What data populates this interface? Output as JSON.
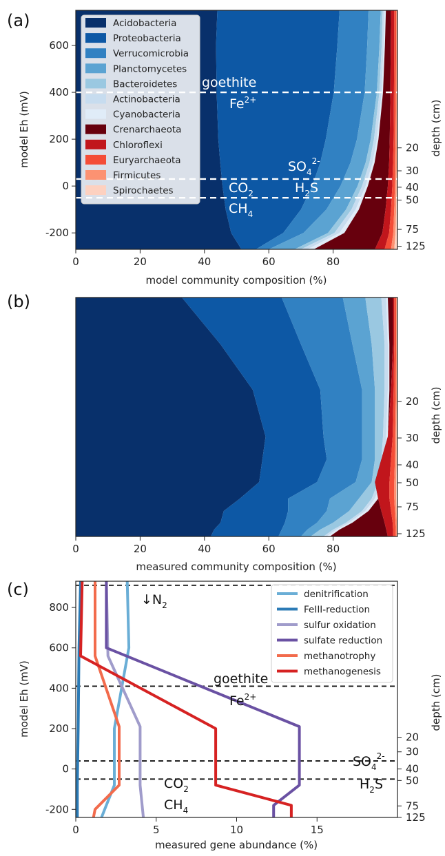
{
  "panels": {
    "a": {
      "letter": "(a)",
      "xlabel": "model community composition (%)",
      "ylabel": "model Eh (mV)",
      "right_label": "depth (cm)",
      "x_ticks": [
        0,
        20,
        40,
        60,
        80
      ],
      "y_ticks": [
        -200,
        0,
        200,
        400,
        600
      ],
      "depth_ticks": [
        {
          "label": "20",
          "eh": 163
        },
        {
          "label": "30",
          "eh": 65
        },
        {
          "label": "40",
          "eh": -5
        },
        {
          "label": "50",
          "eh": -60
        },
        {
          "label": "75",
          "eh": -185
        },
        {
          "label": "125",
          "eh": -257
        }
      ],
      "xlim": [
        0,
        100
      ],
      "ylim": [
        -270,
        750
      ],
      "dashed_lines_eh": [
        400,
        30,
        -50
      ],
      "annotations": {
        "goethite": "goethite",
        "fe": "Fe",
        "fe_sup": "2+",
        "so4": "SO",
        "so4_sub": "4",
        "so4_sup": "2-",
        "h2s_h": "H",
        "h2s_sub": "2",
        "h2s_s": "S",
        "co2": "CO",
        "co2_sub": "2",
        "ch4": "CH",
        "ch4_sub": "4"
      },
      "legend": [
        "Acidobacteria",
        "Proteobacteria",
        "Verrucomicrobia",
        "Planctomycetes",
        "Bacteroidetes",
        "Actinobacteria",
        "Cyanobacteria",
        "Crenarchaeota",
        "Chloroflexi",
        "Euryarchaeota",
        "Firmicutes",
        "Spirochaetes"
      ],
      "colors": [
        "#08306b",
        "#0d58a5",
        "#3181c2",
        "#5ba3d2",
        "#9ac8e1",
        "#c7dcef",
        "#e0ecf8",
        "#67000d",
        "#c1161c",
        "#f44d37",
        "#fc9272",
        "#fdd1c0"
      ]
    },
    "b": {
      "letter": "(b)",
      "xlabel": "measured community composition (%)",
      "right_label": "depth (cm)",
      "x_ticks": [
        0,
        20,
        40,
        60,
        80
      ],
      "depth_ticks": [
        "20",
        "30",
        "40",
        "50",
        "75",
        "125"
      ]
    },
    "c": {
      "letter": "(c)",
      "xlabel": "measured gene abundance (%)",
      "ylabel": "model Eh (mV)",
      "right_label": "depth (cm)",
      "x_ticks": [
        0,
        5,
        10,
        15
      ],
      "y_ticks": [
        -200,
        0,
        200,
        400,
        600,
        800
      ],
      "depth_ticks": [
        {
          "label": "20",
          "eh": 157
        },
        {
          "label": "30",
          "eh": 85
        },
        {
          "label": "40",
          "eh": 0
        },
        {
          "label": "50",
          "eh": -57
        },
        {
          "label": "75",
          "eh": -183
        },
        {
          "label": "125",
          "eh": -240
        }
      ],
      "xlim": [
        0,
        20
      ],
      "ylim": [
        -240,
        930
      ],
      "dashed_lines_eh": [
        910,
        410,
        40,
        -50
      ],
      "annotations": {
        "n2": "↓N",
        "n2_sub": "2",
        "goethite": "goethite",
        "fe": "Fe",
        "fe_sup": "2+",
        "so4": "SO",
        "so4_sub": "4",
        "so4_sup": "2-",
        "h2s_h": "H",
        "h2s_sub": "2",
        "h2s_s": "S",
        "co2": "CO",
        "co2_sub": "2",
        "ch4": "CH",
        "ch4_sub": "4"
      }
    }
  },
  "chart_data": [
    {
      "type": "area",
      "panel": "a",
      "title": "",
      "xlabel": "model community composition (%)",
      "ylabel": "model Eh (mV)",
      "xlim": [
        0,
        100
      ],
      "ylim": [
        -270,
        750
      ],
      "eh": [
        750,
        600,
        400,
        200,
        100,
        0,
        -100,
        -200,
        -270
      ],
      "cumulative_boundaries": [
        {
          "name": "Acidobacteria",
          "values": [
            44.0,
            43.6,
            43.8,
            44.3,
            44.9,
            45.6,
            46.6,
            48.3,
            51.5
          ]
        },
        {
          "name": "Proteobacteria",
          "values": [
            82.0,
            81.3,
            80.2,
            77.7,
            76.0,
            73.5,
            70.0,
            64.5,
            56.0
          ]
        },
        {
          "name": "Verrucomicrobia",
          "values": [
            91.0,
            90.6,
            89.8,
            87.4,
            85.4,
            82.3,
            77.9,
            70.8,
            60.0
          ]
        },
        {
          "name": "Planctomycetes",
          "values": [
            94.8,
            94.4,
            93.6,
            91.7,
            90.1,
            87.6,
            84.0,
            78.4,
            68.0
          ]
        },
        {
          "name": "Bacteroidetes",
          "values": [
            95.4,
            95.1,
            94.4,
            92.7,
            91.3,
            89.0,
            85.7,
            80.4,
            70.0
          ]
        },
        {
          "name": "Actinobacteria",
          "values": [
            96.0,
            95.7,
            95.1,
            93.6,
            92.3,
            90.1,
            87.0,
            82.0,
            72.0
          ]
        },
        {
          "name": "Cyanobacteria",
          "values": [
            96.4,
            96.1,
            95.5,
            94.1,
            92.9,
            90.8,
            88.0,
            83.5,
            74.0
          ]
        },
        {
          "name": "Crenarchaeota",
          "values": [
            98.0,
            97.9,
            97.8,
            97.6,
            97.4,
            97.0,
            96.3,
            95.3,
            93.0
          ]
        },
        {
          "name": "Chloroflexi",
          "values": [
            99.0,
            99.0,
            98.9,
            98.8,
            98.6,
            98.4,
            98.0,
            97.4,
            96.0
          ]
        },
        {
          "name": "Euryarchaeota",
          "values": [
            99.6,
            99.6,
            99.5,
            99.4,
            99.3,
            99.2,
            99.0,
            98.7,
            98.0
          ]
        },
        {
          "name": "Firmicutes",
          "values": [
            99.9,
            99.9,
            99.9,
            99.8,
            99.8,
            99.7,
            99.6,
            99.4,
            99.0
          ]
        },
        {
          "name": "Spirochaetes",
          "values": [
            100,
            100,
            100,
            100,
            100,
            100,
            100,
            100,
            100
          ]
        }
      ]
    },
    {
      "type": "area",
      "panel": "b",
      "title": "",
      "xlabel": "measured community composition (%)",
      "xlim": [
        0,
        100
      ],
      "depth_points_cm": [
        0,
        10,
        20,
        30,
        35,
        40,
        50,
        60,
        75,
        100,
        125
      ],
      "cumulative_boundaries": [
        {
          "name": "Acidobacteria",
          "values": [
            33,
            45,
            55,
            59,
            58,
            57,
            51,
            46,
            45,
            43,
            42
          ]
        },
        {
          "name": "Proteobacteria",
          "values": [
            64,
            70,
            76,
            77,
            78,
            75,
            66,
            66,
            65,
            64,
            63
          ]
        },
        {
          "name": "Verrucomicrobia",
          "values": [
            83,
            86,
            89,
            89,
            89,
            87,
            79,
            78,
            75,
            72,
            70
          ]
        },
        {
          "name": "Planctomycetes",
          "values": [
            90,
            92,
            93,
            93,
            93,
            92,
            88,
            85,
            80,
            76,
            73
          ]
        },
        {
          "name": "Bacteroidetes",
          "values": [
            95,
            96,
            96,
            95.5,
            95,
            94,
            92,
            89,
            84,
            80,
            77
          ]
        },
        {
          "name": "Actinobacteria",
          "values": [
            96.5,
            97,
            97,
            96.5,
            96,
            95,
            93,
            90,
            85,
            81,
            78
          ]
        },
        {
          "name": "Cyanobacteria",
          "values": [
            97,
            97.5,
            97.5,
            97,
            96.5,
            95.5,
            94,
            91,
            86,
            82,
            79
          ]
        },
        {
          "name": "Crenarchaeota",
          "values": [
            98.6,
            98.6,
            98,
            97,
            95,
            93,
            94,
            95,
            96,
            96.5,
            97
          ]
        },
        {
          "name": "Chloroflexi",
          "values": [
            99,
            99,
            98.8,
            98.5,
            98,
            97.5,
            97.5,
            98,
            98.5,
            98.6,
            98.7
          ]
        },
        {
          "name": "Euryarchaeota",
          "values": [
            99.6,
            99.6,
            99.5,
            99.3,
            99.2,
            99,
            99,
            99.2,
            99.4,
            99.5,
            99.5
          ]
        },
        {
          "name": "Firmicutes",
          "values": [
            99.8,
            99.8,
            99.8,
            99.7,
            99.7,
            99.6,
            99.6,
            99.7,
            99.8,
            99.8,
            99.8
          ]
        },
        {
          "name": "Spirochaetes",
          "values": [
            100,
            100,
            100,
            100,
            100,
            100,
            100,
            100,
            100,
            100,
            100
          ]
        }
      ]
    },
    {
      "type": "line",
      "panel": "c",
      "title": "",
      "xlabel": "measured gene abundance (%)",
      "ylabel": "model Eh (mV)",
      "xlim": [
        0,
        20
      ],
      "ylim": [
        -240,
        930
      ],
      "legend_position": "top-right",
      "series": [
        {
          "name": "denitrification",
          "color": "#6aaed6",
          "x": [
            3.2,
            3.3,
            2.4,
            2.4,
            1.8,
            1.6
          ],
          "y": [
            930,
            600,
            200,
            -80,
            -200,
            -240
          ]
        },
        {
          "name": "FeIII-reduction",
          "color": "#2c7bb6",
          "x": [
            0.3,
            0.2,
            0.15,
            0.1,
            0.1
          ],
          "y": [
            930,
            600,
            200,
            -80,
            -240
          ]
        },
        {
          "name": "sulfur oxidation",
          "color": "#a09ccb",
          "x": [
            1.9,
            2.0,
            4.0,
            4.0,
            4.2
          ],
          "y": [
            930,
            560,
            210,
            -80,
            -240
          ]
        },
        {
          "name": "sulfate reduction",
          "color": "#6a51a3",
          "x": [
            1.9,
            1.9,
            13.9,
            13.9,
            12.3,
            12.3
          ],
          "y": [
            930,
            600,
            210,
            -80,
            -180,
            -240
          ]
        },
        {
          "name": "methanotrophy",
          "color": "#f26b4c",
          "x": [
            1.2,
            1.2,
            2.7,
            2.7,
            1.2,
            1.1
          ],
          "y": [
            930,
            560,
            210,
            -80,
            -200,
            -240
          ]
        },
        {
          "name": "methanogenesis",
          "color": "#d62222",
          "x": [
            0.4,
            0.3,
            8.7,
            8.7,
            13.4,
            13.4
          ],
          "y": [
            930,
            560,
            200,
            -80,
            -180,
            -240
          ]
        }
      ]
    }
  ]
}
